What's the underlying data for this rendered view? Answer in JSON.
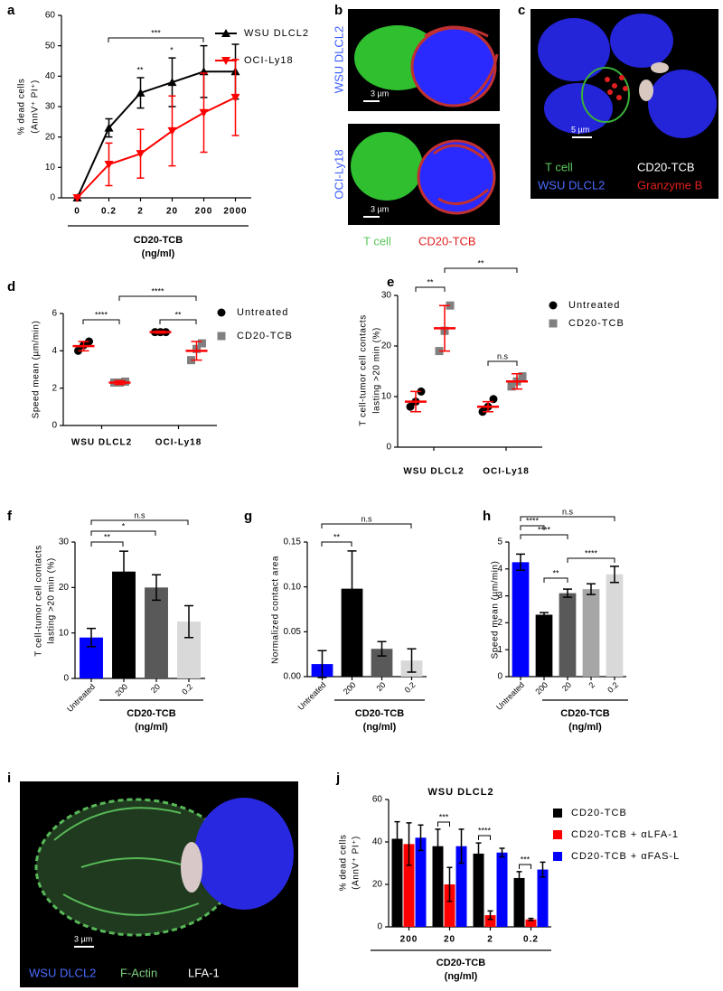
{
  "chart_data": [
    {
      "label": "a",
      "type": "line",
      "y_label": [
        "% dead cells",
        "(AnnV⁺ PI⁺)"
      ],
      "x_label": [
        "CD20-TCB",
        "(ng/ml)"
      ],
      "categories": [
        "0",
        "0.2",
        "2",
        "20",
        "200",
        "2000"
      ],
      "series": [
        {
          "name": "WSU DLCL2",
          "color": "#000000",
          "marker": "triangle-up",
          "values": [
            0,
            23,
            34.5,
            38,
            41.5,
            41.5
          ],
          "errors": [
            0,
            3,
            5,
            8,
            8.5,
            9
          ]
        },
        {
          "name": "OCI-Ly18",
          "color": "#ff0000",
          "marker": "triangle-down",
          "values": [
            0,
            11,
            14.5,
            22,
            28,
            33
          ],
          "errors": [
            0,
            7,
            8,
            11.5,
            13,
            12.5
          ]
        }
      ],
      "ylim": [
        0,
        60
      ],
      "yticks": [
        0,
        10,
        20,
        30,
        40,
        50,
        60
      ],
      "annotations": [
        "***",
        "**",
        "*"
      ],
      "legend": "top-right"
    },
    {
      "label": "d",
      "type": "dot",
      "y_label": [
        "Speed mean (µm/min)"
      ],
      "categories": [
        "WSU DLCL2",
        "OCI-Ly18"
      ],
      "series": [
        {
          "name": "Untreated",
          "color": "#000000",
          "marker": "circle",
          "values": [
            [
              4.0,
              4.3,
              4.5
            ],
            [
              5.0,
              5.0,
              5.0
            ]
          ],
          "means": [
            4.25,
            5.0
          ],
          "sd": [
            0.25,
            0.05
          ]
        },
        {
          "name": "CD20-TCB",
          "color": "#808080",
          "marker": "square",
          "values": [
            [
              2.3,
              2.3,
              2.35
            ],
            [
              3.5,
              4.1,
              4.4
            ]
          ],
          "means": [
            2.3,
            4.0
          ],
          "sd": [
            0.1,
            0.5
          ]
        }
      ],
      "summary_color": "#ff0000",
      "ylim": [
        0,
        6
      ],
      "yticks": [
        0,
        2,
        4,
        6
      ],
      "annotations": [
        "****",
        "**",
        "****"
      ],
      "legend": "right"
    },
    {
      "label": "e",
      "type": "dot",
      "y_label": [
        "T cell-tumor cell contacts",
        "lasting >20 min (%)"
      ],
      "categories": [
        "WSU DLCL2",
        "OCI-Ly18"
      ],
      "series": [
        {
          "name": "Untreated",
          "color": "#000000",
          "marker": "circle",
          "values": [
            [
              8,
              9,
              11
            ],
            [
              7,
              8,
              9.5
            ]
          ],
          "means": [
            9,
            8
          ],
          "sd": [
            2,
            1
          ]
        },
        {
          "name": "CD20-TCB",
          "color": "#808080",
          "marker": "square",
          "values": [
            [
              19,
              23,
              28
            ],
            [
              12,
              13,
              14
            ]
          ],
          "means": [
            23.5,
            13
          ],
          "sd": [
            4.5,
            1.5
          ]
        }
      ],
      "summary_color": "#ff0000",
      "ylim": [
        0,
        30
      ],
      "yticks": [
        0,
        10,
        20,
        30
      ],
      "annotations": [
        "**",
        "**",
        "n.s"
      ],
      "legend": "right"
    },
    {
      "label": "f",
      "type": "bar",
      "y_label": [
        "T cell-tumor cell contacts",
        "lasting >20 min (%)"
      ],
      "x_label": [
        "CD20-TCB",
        "(ng/ml)"
      ],
      "categories": [
        "Untreated",
        "200",
        "20",
        "0.2"
      ],
      "values": [
        9,
        23.5,
        20,
        12.5
      ],
      "errors": [
        2,
        4.5,
        2.8,
        3.5
      ],
      "colors": [
        "#0000ff",
        "#000000",
        "#595959",
        "#d9d9d9"
      ],
      "ylim": [
        0,
        30
      ],
      "yticks": [
        0,
        10,
        20,
        30
      ],
      "annotations": [
        "n.s",
        "*",
        "**"
      ]
    },
    {
      "label": "g",
      "type": "bar",
      "y_label": [
        "Normalized contact area"
      ],
      "x_label": [
        "CD20-TCB",
        "(ng/ml)"
      ],
      "categories": [
        "Untreated",
        "200",
        "20",
        "0.2"
      ],
      "values": [
        0.014,
        0.098,
        0.031,
        0.018
      ],
      "errors": [
        0.015,
        0.042,
        0.008,
        0.013
      ],
      "colors": [
        "#0000ff",
        "#000000",
        "#595959",
        "#d9d9d9"
      ],
      "ylim": [
        0,
        0.15
      ],
      "yticks": [
        {
          "value": 0,
          "label": "0.00"
        },
        0.05,
        {
          "value": 0.1,
          "label": "0.10"
        },
        0.15
      ],
      "annotations": [
        "n.s",
        "**"
      ]
    },
    {
      "label": "h",
      "type": "bar",
      "y_label": [
        "Speed mean (µm/min)"
      ],
      "x_label": [
        "CD20-TCB",
        "(ng/ml)"
      ],
      "categories": [
        "Untreated",
        "200",
        "20",
        "2",
        "0.2"
      ],
      "values": [
        4.25,
        2.3,
        3.1,
        3.25,
        3.8
      ],
      "errors": [
        0.3,
        0.08,
        0.15,
        0.2,
        0.3
      ],
      "colors": [
        "#0000ff",
        "#000000",
        "#595959",
        "#a6a6a6",
        "#d9d9d9"
      ],
      "ylim": [
        0,
        5
      ],
      "yticks": [
        0,
        1,
        2,
        3,
        4,
        5
      ],
      "annotations": [
        "n.s",
        "****",
        "****",
        "****",
        "**"
      ]
    },
    {
      "label": "j",
      "type": "bar",
      "title": "WSU DLCL2",
      "y_label": [
        "% dead cells",
        "(AnnV⁺ PI⁺)"
      ],
      "x_label": [
        "CD20-TCB",
        "(ng/ml)"
      ],
      "categories": [
        "200",
        "20",
        "2",
        "0.2"
      ],
      "series": [
        {
          "name": "CD20-TCB",
          "color": "#000000",
          "values": [
            41.5,
            38,
            34.5,
            23
          ],
          "errors": [
            8,
            8,
            5,
            3
          ]
        },
        {
          "name": "CD20-TCB + αLFA-1",
          "color": "#ff0000",
          "values": [
            39,
            20,
            5.5,
            3.5
          ],
          "errors": [
            10,
            8,
            2,
            0.5
          ]
        },
        {
          "name": "CD20-TCB + αFAS-L",
          "color": "#0000ff",
          "values": [
            42,
            38,
            35,
            27
          ],
          "errors": [
            6,
            8,
            2,
            3.5
          ]
        }
      ],
      "ylim": [
        0,
        60
      ],
      "yticks": [
        0,
        20,
        40,
        60
      ],
      "annotations": [
        "***",
        "****",
        "***"
      ],
      "legend": "right"
    }
  ],
  "images": [
    {
      "label": "b",
      "cell_lines": [
        "WSU DLCL2",
        "OCI-Ly18"
      ],
      "scale_bars": [
        "3 µm",
        "3 µm"
      ],
      "legend": [
        "T cell",
        "CD20-TCB"
      ]
    },
    {
      "label": "c",
      "scale_bar": "5 µm",
      "legend": [
        "T cell",
        "CD20-TCB",
        "WSU DLCL2",
        "Granzyme B"
      ]
    },
    {
      "label": "i",
      "scale_bar": "3 µm",
      "legend": [
        "WSU DLCL2",
        "F-Actin",
        "LFA-1"
      ]
    }
  ]
}
